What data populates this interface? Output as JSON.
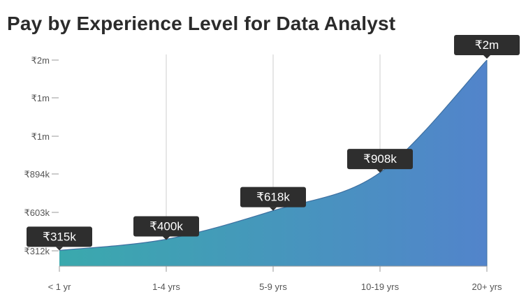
{
  "chart_data": {
    "type": "area",
    "title": "Pay by Experience Level for Data Analyst",
    "xlabel": "",
    "ylabel": "",
    "categories": [
      "< 1 yr",
      "1-4 yrs",
      "5-9 yrs",
      "10-19 yrs",
      "20+ yrs"
    ],
    "values": [
      315000,
      400000,
      618000,
      908000,
      2000000
    ],
    "data_labels": [
      "₹315k",
      "₹400k",
      "₹618k",
      "₹908k",
      "₹2m"
    ],
    "y_tick_labels": [
      "₹312k",
      "₹603k",
      "₹894k",
      "₹1m",
      "₹1m",
      "₹2m"
    ],
    "ylim": [
      312000,
      2000000
    ],
    "grid": "vertical",
    "legend": "none",
    "colors": {
      "gradient_start": "#3aa9ad",
      "gradient_end": "#5284cb",
      "line": "#3d6fa0",
      "label_bg": "#2e2e2e",
      "label_text": "#ffffff",
      "grid": "#cccccc",
      "axis": "#999999"
    }
  }
}
